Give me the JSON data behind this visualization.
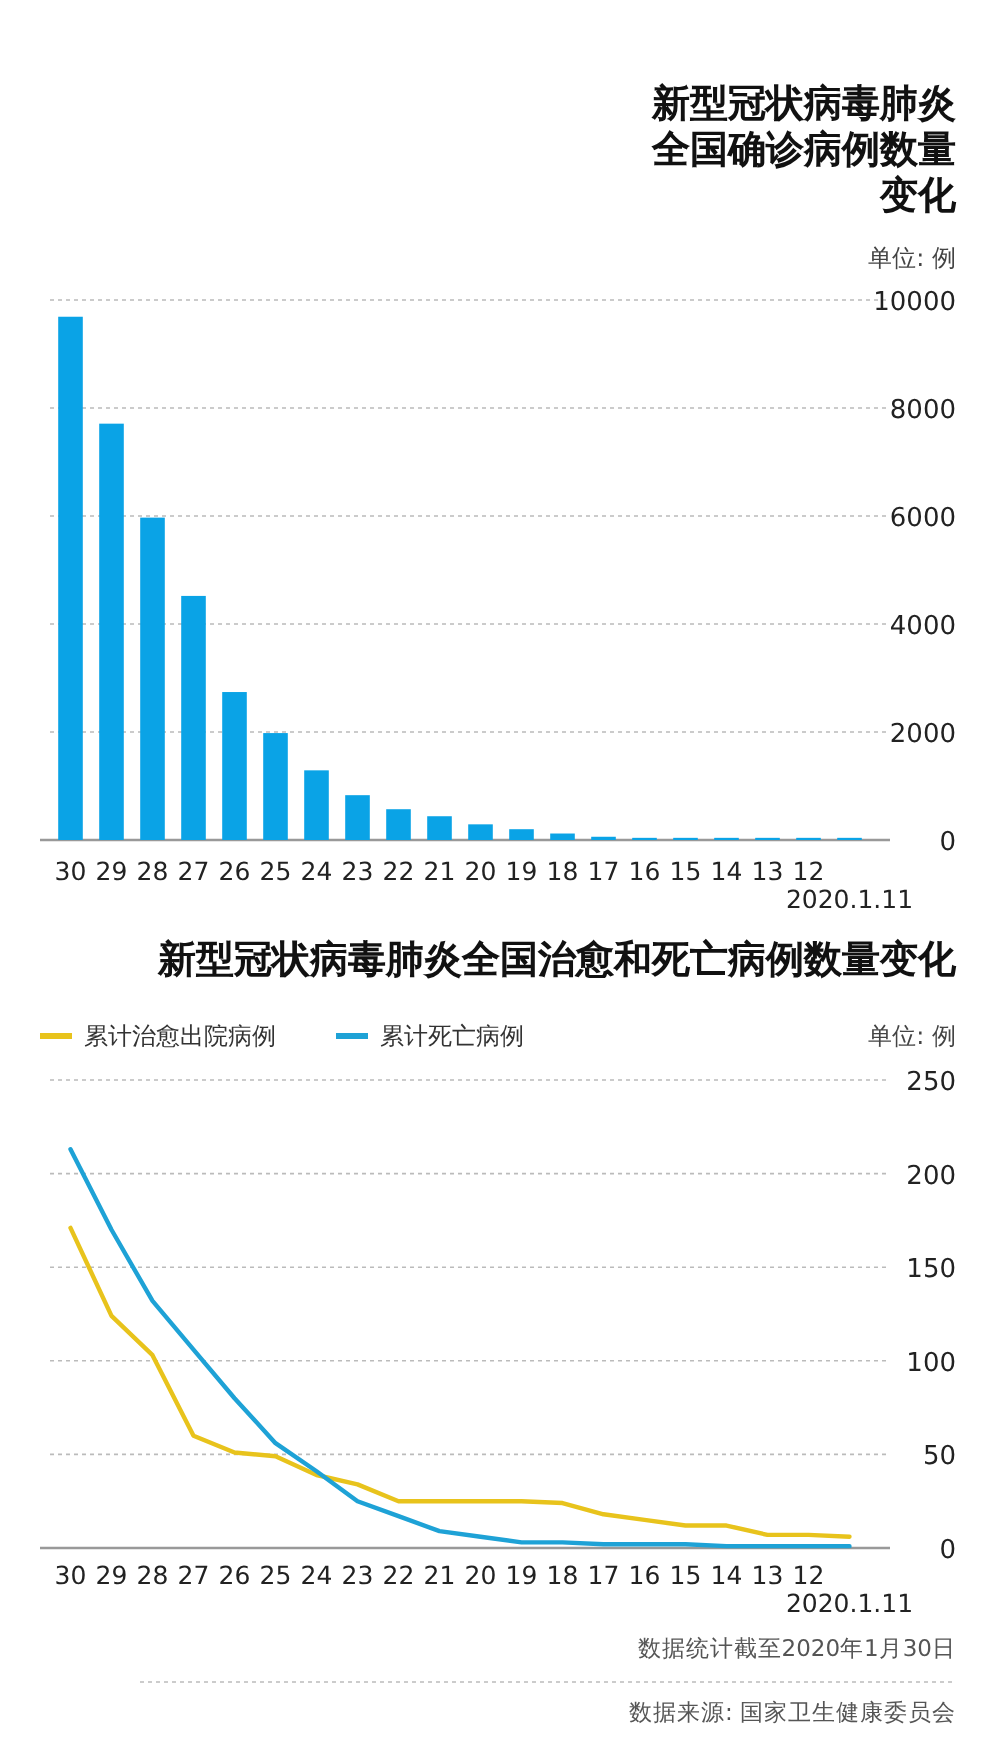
{
  "chart_data": [
    {
      "type": "bar",
      "title": "新型冠状病毒肺炎全国确诊病例数量变化",
      "ylabel": "单位: 例",
      "categories": [
        "30",
        "29",
        "28",
        "27",
        "26",
        "25",
        "24",
        "23",
        "22",
        "21",
        "20",
        "19",
        "18",
        "17",
        "16",
        "15",
        "14",
        "13",
        "12",
        "2020.1.11"
      ],
      "values": [
        9690,
        7710,
        5970,
        4520,
        2740,
        1980,
        1290,
        830,
        570,
        440,
        290,
        200,
        120,
        60,
        40,
        40,
        40,
        40,
        40,
        40
      ],
      "color": "#0aa3e6",
      "ylim": [
        0,
        10000
      ],
      "yticks": [
        0,
        2000,
        4000,
        6000,
        8000,
        10000
      ],
      "grid": "y"
    },
    {
      "type": "line",
      "title": "新型冠状病毒肺炎全国治愈和死亡病例数量变化",
      "ylabel": "单位: 例",
      "categories": [
        "30",
        "29",
        "28",
        "27",
        "26",
        "25",
        "24",
        "23",
        "22",
        "21",
        "20",
        "19",
        "18",
        "17",
        "16",
        "15",
        "14",
        "13",
        "12",
        "2020.1.11"
      ],
      "series": [
        {
          "name": "累计治愈出院病例",
          "color": "#e8c31c",
          "values": [
            171,
            124,
            103,
            60,
            51,
            49,
            39,
            34,
            25,
            25,
            25,
            25,
            24,
            18,
            15,
            12,
            12,
            7,
            7,
            6
          ]
        },
        {
          "name": "累计死亡病例",
          "color": "#1ea2d6",
          "values": [
            213,
            170,
            132,
            106,
            80,
            56,
            41,
            25,
            17,
            9,
            6,
            3,
            3,
            2,
            2,
            2,
            1,
            1,
            1,
            1
          ]
        }
      ],
      "ylim": [
        0,
        250
      ],
      "yticks": [
        0,
        50,
        100,
        150,
        200,
        250
      ],
      "grid": "y",
      "legend": "top left",
      "marker": "none",
      "line_style": "solid",
      "annotations": [
        "数据统计截至2020年1月30日",
        "数据来源: 国家卫生健康委员会"
      ]
    }
  ]
}
